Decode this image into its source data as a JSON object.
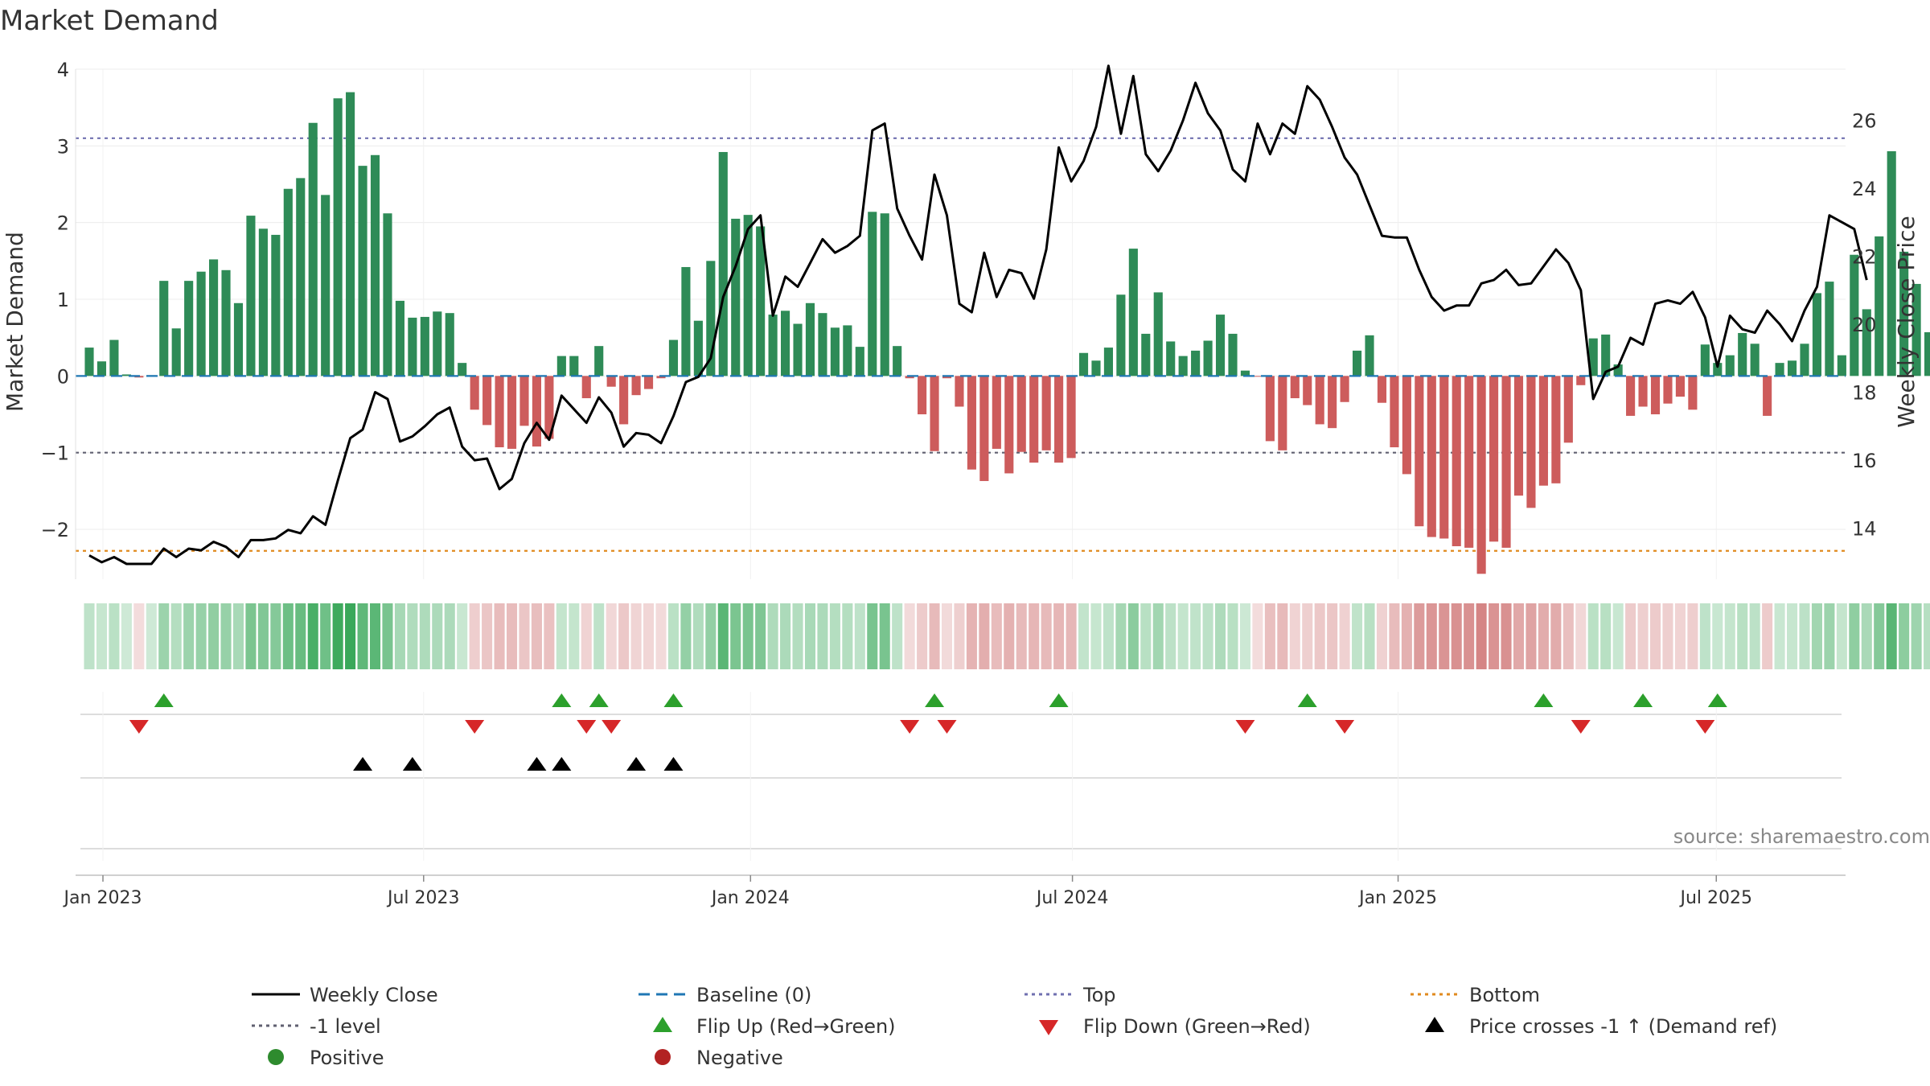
{
  "chart_data": {
    "type": "bar",
    "title": "Market Demand",
    "ylabel_left": "Market Demand",
    "ylabel_right": "Weekly Close Price",
    "source": "source: sharemaestro.com",
    "ylim_left": [
      -2.65,
      4.0
    ],
    "ylim_right": [
      12.5,
      27.5
    ],
    "yticks_left": [
      {
        "v": 4,
        "label": "4"
      },
      {
        "v": 3,
        "label": "3"
      },
      {
        "v": 2,
        "label": "2"
      },
      {
        "v": 1,
        "label": "1"
      },
      {
        "v": 0,
        "label": "0"
      },
      {
        "v": -1,
        "label": "−1"
      },
      {
        "v": -2,
        "label": "−2"
      }
    ],
    "yticks_right": [
      {
        "v": 26,
        "label": "26"
      },
      {
        "v": 24,
        "label": "24"
      },
      {
        "v": 22,
        "label": "22"
      },
      {
        "v": 20,
        "label": "20"
      },
      {
        "v": 18,
        "label": "18"
      },
      {
        "v": 16,
        "label": "16"
      },
      {
        "v": 14,
        "label": "14"
      }
    ],
    "x_range": [
      -1.1,
      141.3
    ],
    "xticks": [
      {
        "i": 1.1,
        "label": "Jan 2023"
      },
      {
        "i": 26.9,
        "label": "Jul 2023"
      },
      {
        "i": 53.2,
        "label": "Jan 2024"
      },
      {
        "i": 79.1,
        "label": "Jul 2024"
      },
      {
        "i": 105.3,
        "label": "Jan 2025"
      },
      {
        "i": 130.9,
        "label": "Jul 2025"
      }
    ],
    "levels": {
      "top": 3.1,
      "minus_one": -1.0,
      "bottom": -2.28
    },
    "demand": [
      0.37,
      0.19,
      0.47,
      0.02,
      -0.02,
      0.01,
      1.24,
      0.62,
      1.24,
      1.36,
      1.52,
      1.38,
      0.95,
      2.09,
      1.92,
      1.84,
      2.44,
      2.58,
      3.3,
      2.36,
      3.62,
      3.7,
      2.74,
      2.88,
      2.12,
      0.98,
      0.76,
      0.77,
      0.84,
      0.82,
      0.17,
      -0.44,
      -0.64,
      -0.93,
      -0.95,
      -0.65,
      -0.92,
      -0.82,
      0.26,
      0.26,
      -0.29,
      0.39,
      -0.14,
      -0.63,
      -0.25,
      -0.17,
      -0.03,
      0.47,
      1.42,
      0.72,
      1.5,
      2.92,
      2.05,
      2.1,
      1.95,
      0.8,
      0.85,
      0.68,
      0.95,
      0.82,
      0.63,
      0.66,
      0.38,
      2.14,
      2.12,
      0.39,
      -0.03,
      -0.5,
      -0.98,
      -0.03,
      -0.4,
      -1.22,
      -1.37,
      -0.95,
      -1.27,
      -0.99,
      -1.13,
      -0.97,
      -1.13,
      -1.07,
      0.3,
      0.2,
      0.37,
      1.06,
      1.66,
      0.55,
      1.09,
      0.45,
      0.26,
      0.33,
      0.46,
      0.8,
      0.55,
      0.07,
      -0.01,
      -0.85,
      -0.97,
      -0.29,
      -0.38,
      -0.63,
      -0.68,
      -0.34,
      0.33,
      0.53,
      -0.35,
      -0.93,
      -1.28,
      -1.96,
      -2.1,
      -2.12,
      -2.22,
      -2.24,
      -2.58,
      -2.16,
      -2.24,
      -1.56,
      -1.72,
      -1.43,
      -1.4,
      -0.87,
      -0.12,
      0.49,
      0.54,
      0.15,
      -0.52,
      -0.4,
      -0.5,
      -0.36,
      -0.27,
      -0.44,
      0.41,
      0.17,
      0.27,
      0.56,
      0.42,
      -0.52,
      0.17,
      0.2,
      0.42,
      1.08,
      1.23,
      0.27,
      1.58,
      0.87,
      1.82,
      2.93,
      1.62,
      1.2,
      0.57
    ],
    "weekly_close": [
      13.2,
      13.0,
      13.15,
      12.95,
      12.95,
      12.95,
      13.4,
      13.15,
      13.4,
      13.35,
      13.6,
      13.45,
      13.15,
      13.65,
      13.65,
      13.7,
      13.95,
      13.85,
      14.35,
      14.1,
      15.4,
      16.65,
      16.9,
      18.0,
      17.8,
      16.55,
      16.7,
      17.0,
      17.35,
      17.55,
      16.4,
      16.0,
      16.05,
      15.15,
      15.45,
      16.5,
      17.1,
      16.6,
      17.9,
      17.5,
      17.1,
      17.85,
      17.4,
      16.4,
      16.8,
      16.75,
      16.5,
      17.3,
      18.3,
      18.45,
      19.0,
      20.8,
      21.7,
      22.8,
      23.2,
      20.25,
      21.4,
      21.1,
      21.8,
      22.5,
      22.1,
      22.3,
      22.6,
      25.7,
      25.9,
      23.4,
      22.6,
      21.9,
      24.4,
      23.2,
      20.6,
      20.35,
      22.1,
      20.8,
      21.6,
      21.5,
      20.75,
      22.2,
      25.2,
      24.2,
      24.8,
      25.8,
      27.6,
      25.6,
      27.3,
      25.0,
      24.5,
      25.1,
      26.0,
      27.1,
      26.2,
      25.7,
      24.55,
      24.2,
      25.9,
      25.0,
      25.9,
      25.6,
      27.0,
      26.6,
      25.8,
      24.9,
      24.4,
      23.5,
      22.6,
      22.55,
      22.55,
      21.6,
      20.8,
      20.4,
      20.55,
      20.55,
      21.2,
      21.3,
      21.6,
      21.15,
      21.2,
      21.7,
      22.2,
      21.8,
      21.0,
      17.8,
      18.6,
      18.75,
      19.6,
      19.4,
      20.6,
      20.7,
      20.6,
      20.95,
      20.2,
      18.75,
      20.25,
      19.85,
      19.75,
      20.4,
      20.0,
      19.5,
      20.4,
      21.1,
      23.2,
      23.0,
      22.8,
      21.3
    ],
    "flip_up": [
      6,
      38,
      41,
      47,
      68,
      78,
      98,
      117,
      125,
      131
    ],
    "flip_down": [
      4,
      31,
      40,
      42,
      66,
      69,
      93,
      101,
      120,
      130
    ],
    "price_cross": [
      22,
      26,
      36,
      38,
      44,
      47
    ],
    "legend": {
      "weekly_close": "Weekly Close",
      "baseline": "Baseline (0)",
      "top": "Top",
      "bottom": "Bottom",
      "minus_one": "-1 level",
      "flip_up": "Flip Up (Red→Green)",
      "flip_down": "Flip Down (Green→Red)",
      "price_cross": "Price crosses -1 ↑ (Demand ref)",
      "positive": "Positive",
      "negative": "Negative"
    },
    "colors": {
      "positive": "#2e8b57",
      "negative": "#cd5c5c",
      "top_line": "#7070b0",
      "bottom_line": "#e08a1e",
      "minus_one_line": "#606070",
      "baseline": "#1f77b4",
      "flip_up": "#2ca02c",
      "flip_down": "#d62728",
      "price_cross": "#000000",
      "positive_dot": "#2e8b2e",
      "negative_dot": "#b22222"
    }
  }
}
